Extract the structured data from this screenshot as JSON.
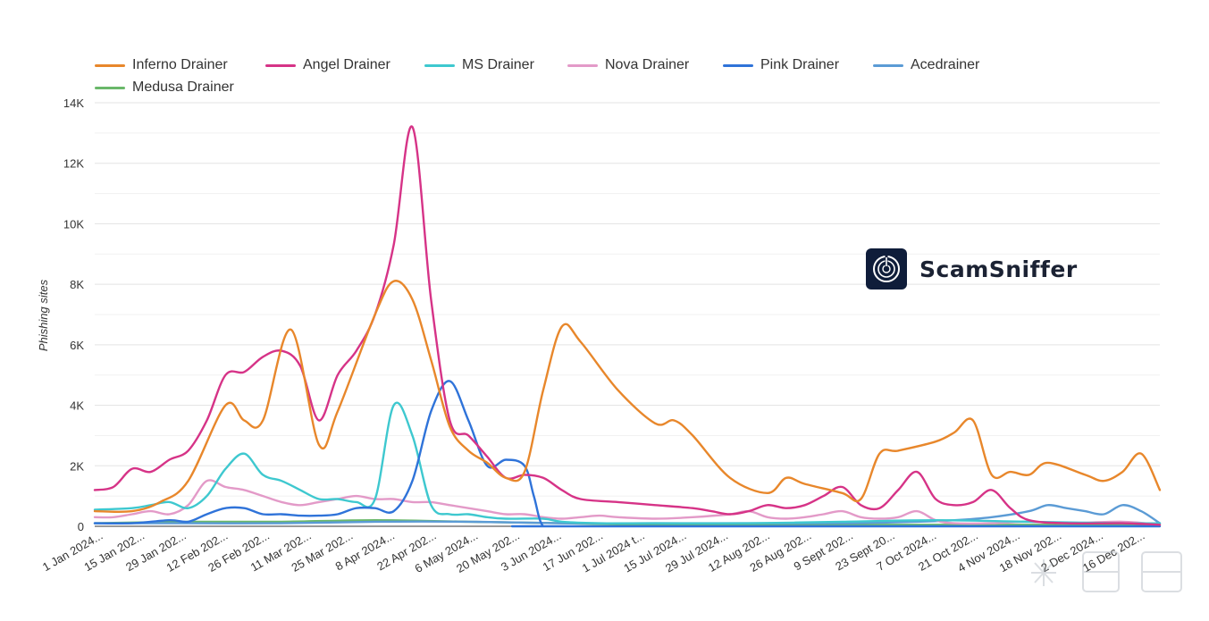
{
  "chart_data": {
    "type": "line",
    "ylabel": "Phishing sites",
    "ylim": [
      0,
      14000
    ],
    "y_ticks": [
      {
        "value": 0,
        "label": "0"
      },
      {
        "value": 2000,
        "label": "2K"
      },
      {
        "value": 4000,
        "label": "4K"
      },
      {
        "value": 6000,
        "label": "6K"
      },
      {
        "value": 8000,
        "label": "8K"
      },
      {
        "value": 10000,
        "label": "10K"
      },
      {
        "value": 12000,
        "label": "12K"
      },
      {
        "value": 14000,
        "label": "14K"
      }
    ],
    "x_tick_labels": [
      "1 Jan 2024...",
      "15 Jan 202...",
      "29 Jan 202...",
      "12 Feb 202...",
      "26 Feb 202...",
      "11 Mar 202...",
      "25 Mar 202...",
      "8 Apr 2024...",
      "22 Apr 202...",
      "6 May 2024...",
      "20 May 202...",
      "3 Jun 2024...",
      "17 Jun 202...",
      "1 Jul 2024 t...",
      "15 Jul 2024...",
      "29 Jul 2024...",
      "12 Aug 202...",
      "26 Aug 202...",
      "9 Sept 202...",
      "23 Sept 20...",
      "7 Oct 2024...",
      "21 Oct 202...",
      "4 Nov 2024...",
      "18 Nov 202...",
      "2 Dec 2024...",
      "16 Dec 202..."
    ],
    "legend_placement": "top",
    "grid": true,
    "series": [
      {
        "name": "Inferno Drainer",
        "color": "#e8872b",
        "points": [
          [
            0,
            500
          ],
          [
            2,
            500
          ],
          [
            3.5,
            800
          ],
          [
            5,
            1500
          ],
          [
            7,
            4000
          ],
          [
            8,
            3500
          ],
          [
            9,
            3500
          ],
          [
            10.5,
            6500
          ],
          [
            12,
            2700
          ],
          [
            13,
            3800
          ],
          [
            15,
            7000
          ],
          [
            16,
            8100
          ],
          [
            17,
            7500
          ],
          [
            18,
            5500
          ],
          [
            19,
            3300
          ],
          [
            20,
            2500
          ],
          [
            21,
            2100
          ],
          [
            22,
            1600
          ],
          [
            23,
            1800
          ],
          [
            24,
            4500
          ],
          [
            25,
            6600
          ],
          [
            26,
            6100
          ],
          [
            28,
            4500
          ],
          [
            30,
            3400
          ],
          [
            31,
            3500
          ],
          [
            32,
            3000
          ],
          [
            34,
            1600
          ],
          [
            36,
            1100
          ],
          [
            37,
            1600
          ],
          [
            38,
            1400
          ],
          [
            40,
            1100
          ],
          [
            41,
            900
          ],
          [
            42,
            2400
          ],
          [
            43,
            2500
          ],
          [
            45,
            2800
          ],
          [
            46,
            3100
          ],
          [
            47,
            3500
          ],
          [
            48,
            1700
          ],
          [
            49,
            1800
          ],
          [
            50,
            1700
          ],
          [
            51,
            2100
          ],
          [
            53,
            1700
          ],
          [
            54,
            1500
          ],
          [
            55,
            1800
          ],
          [
            56,
            2400
          ],
          [
            57,
            1200
          ]
        ]
      },
      {
        "name": "Angel Drainer",
        "color": "#d63387",
        "points": [
          [
            0,
            1200
          ],
          [
            1,
            1300
          ],
          [
            2,
            1900
          ],
          [
            3,
            1800
          ],
          [
            4,
            2200
          ],
          [
            5,
            2500
          ],
          [
            6,
            3500
          ],
          [
            7,
            5000
          ],
          [
            8,
            5100
          ],
          [
            9,
            5600
          ],
          [
            10,
            5800
          ],
          [
            11,
            5300
          ],
          [
            12,
            3500
          ],
          [
            13,
            5000
          ],
          [
            14,
            5800
          ],
          [
            15,
            7000
          ],
          [
            16,
            9300
          ],
          [
            17,
            13200
          ],
          [
            18,
            7500
          ],
          [
            19,
            3500
          ],
          [
            20,
            3000
          ],
          [
            21,
            2300
          ],
          [
            22,
            1600
          ],
          [
            23,
            1700
          ],
          [
            24,
            1600
          ],
          [
            25,
            1200
          ],
          [
            26,
            900
          ],
          [
            28,
            800
          ],
          [
            30,
            700
          ],
          [
            32,
            600
          ],
          [
            33,
            500
          ],
          [
            34,
            400
          ],
          [
            35,
            500
          ],
          [
            36,
            700
          ],
          [
            37,
            600
          ],
          [
            38,
            700
          ],
          [
            39,
            1000
          ],
          [
            40,
            1300
          ],
          [
            41,
            700
          ],
          [
            42,
            600
          ],
          [
            43,
            1200
          ],
          [
            44,
            1800
          ],
          [
            45,
            900
          ],
          [
            46,
            700
          ],
          [
            47,
            800
          ],
          [
            48,
            1200
          ],
          [
            49,
            600
          ],
          [
            50,
            200
          ],
          [
            52,
            100
          ],
          [
            55,
            100
          ],
          [
            57,
            50
          ]
        ]
      },
      {
        "name": "MS Drainer",
        "color": "#3ec8cf",
        "points": [
          [
            0,
            550
          ],
          [
            2,
            600
          ],
          [
            3,
            700
          ],
          [
            4,
            800
          ],
          [
            5,
            600
          ],
          [
            6,
            1000
          ],
          [
            7,
            1900
          ],
          [
            8,
            2400
          ],
          [
            9,
            1700
          ],
          [
            10,
            1500
          ],
          [
            11,
            1200
          ],
          [
            12,
            900
          ],
          [
            13,
            900
          ],
          [
            14,
            800
          ],
          [
            15,
            900
          ],
          [
            16,
            4000
          ],
          [
            17,
            3000
          ],
          [
            18,
            700
          ],
          [
            19,
            400
          ],
          [
            20,
            400
          ],
          [
            21,
            300
          ],
          [
            22,
            250
          ],
          [
            24,
            250
          ],
          [
            25,
            150
          ],
          [
            27,
            100
          ],
          [
            30,
            100
          ],
          [
            35,
            100
          ],
          [
            40,
            150
          ],
          [
            45,
            200
          ],
          [
            50,
            150
          ],
          [
            55,
            100
          ],
          [
            57,
            100
          ]
        ]
      },
      {
        "name": "Nova Drainer",
        "color": "#e39ac8",
        "points": [
          [
            0,
            300
          ],
          [
            1,
            300
          ],
          [
            2,
            400
          ],
          [
            3,
            500
          ],
          [
            4,
            400
          ],
          [
            5,
            700
          ],
          [
            6,
            1500
          ],
          [
            7,
            1300
          ],
          [
            8,
            1200
          ],
          [
            9,
            1000
          ],
          [
            10,
            800
          ],
          [
            11,
            700
          ],
          [
            12,
            800
          ],
          [
            13,
            900
          ],
          [
            14,
            1000
          ],
          [
            15,
            900
          ],
          [
            16,
            900
          ],
          [
            17,
            800
          ],
          [
            18,
            800
          ],
          [
            19,
            700
          ],
          [
            20,
            600
          ],
          [
            21,
            500
          ],
          [
            22,
            400
          ],
          [
            23,
            400
          ],
          [
            24,
            300
          ],
          [
            25,
            250
          ],
          [
            26,
            300
          ],
          [
            27,
            350
          ],
          [
            28,
            300
          ],
          [
            30,
            250
          ],
          [
            32,
            300
          ],
          [
            34,
            400
          ],
          [
            35,
            500
          ],
          [
            36,
            300
          ],
          [
            37,
            250
          ],
          [
            38,
            300
          ],
          [
            39,
            400
          ],
          [
            40,
            500
          ],
          [
            41,
            300
          ],
          [
            42,
            250
          ],
          [
            43,
            300
          ],
          [
            44,
            500
          ],
          [
            45,
            200
          ],
          [
            46,
            100
          ],
          [
            48,
            100
          ],
          [
            50,
            150
          ],
          [
            52,
            100
          ],
          [
            55,
            150
          ],
          [
            57,
            50
          ]
        ]
      },
      {
        "name": "Pink Drainer",
        "color": "#2f73d9",
        "points": [
          [
            0,
            100
          ],
          [
            2,
            100
          ],
          [
            4,
            200
          ],
          [
            5,
            150
          ],
          [
            6,
            400
          ],
          [
            7,
            600
          ],
          [
            8,
            600
          ],
          [
            9,
            400
          ],
          [
            10,
            400
          ],
          [
            11,
            350
          ],
          [
            12,
            350
          ],
          [
            13,
            400
          ],
          [
            14,
            600
          ],
          [
            15,
            600
          ],
          [
            16,
            500
          ],
          [
            17,
            1500
          ],
          [
            18,
            3800
          ],
          [
            19,
            4800
          ],
          [
            20,
            3500
          ],
          [
            21,
            2000
          ],
          [
            22,
            2200
          ],
          [
            23,
            2000
          ],
          [
            23.5,
            1000
          ],
          [
            24,
            0
          ],
          [
            25,
            0
          ],
          [
            57,
            0
          ]
        ]
      },
      {
        "name": "Acedrainer",
        "color": "#5b9bd5",
        "points": [
          [
            0,
            100
          ],
          [
            5,
            100
          ],
          [
            10,
            100
          ],
          [
            15,
            150
          ],
          [
            20,
            150
          ],
          [
            25,
            100
          ],
          [
            30,
            100
          ],
          [
            35,
            100
          ],
          [
            40,
            100
          ],
          [
            44,
            150
          ],
          [
            46,
            200
          ],
          [
            48,
            300
          ],
          [
            50,
            500
          ],
          [
            51,
            700
          ],
          [
            52,
            600
          ],
          [
            53,
            500
          ],
          [
            54,
            400
          ],
          [
            55,
            700
          ],
          [
            56,
            500
          ],
          [
            57,
            100
          ]
        ]
      },
      {
        "name": "Medusa Drainer",
        "color": "#6ab86a",
        "points": [
          [
            0,
            100
          ],
          [
            5,
            150
          ],
          [
            10,
            150
          ],
          [
            15,
            200
          ],
          [
            20,
            150
          ],
          [
            25,
            100
          ],
          [
            30,
            50
          ],
          [
            40,
            50
          ],
          [
            50,
            50
          ],
          [
            57,
            50
          ]
        ]
      }
    ]
  },
  "brand": {
    "name": "ScamSniffer"
  }
}
